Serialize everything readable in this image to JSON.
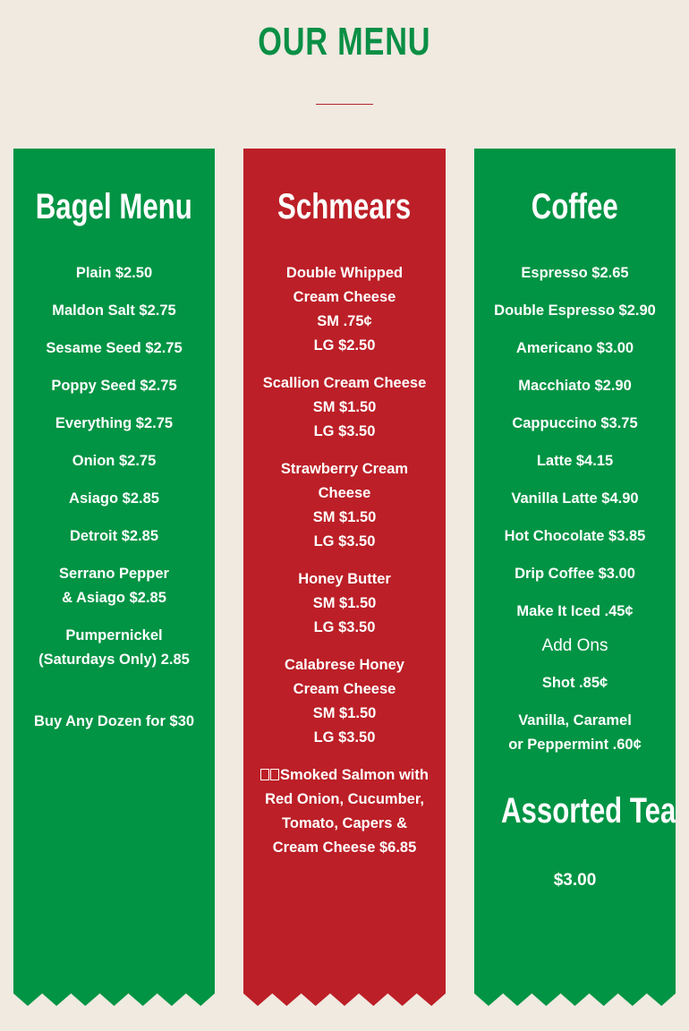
{
  "title": "OUR MENU",
  "colors": {
    "background": "#f0eae1",
    "green": "#009444",
    "red": "#bc1f27",
    "title": "#0a8f45"
  },
  "bagels": {
    "heading": "Bagel Menu",
    "items": [
      [
        "Plain $2.50"
      ],
      [
        "Maldon Salt $2.75"
      ],
      [
        "Sesame Seed $2.75"
      ],
      [
        "Poppy Seed $2.75"
      ],
      [
        "Everything $2.75"
      ],
      [
        "Onion $2.75"
      ],
      [
        "Asiago $2.85"
      ],
      [
        "Detroit $2.85"
      ],
      [
        "Serrano Pepper",
        "& Asiago $2.85"
      ],
      [
        "Pumpernickel",
        "(Saturdays Only) 2.85"
      ]
    ],
    "footer": "Buy Any Dozen for $30"
  },
  "schmears": {
    "heading": "Schmears",
    "items": [
      [
        "Double Whipped",
        "Cream Cheese",
        "SM .75¢",
        "LG $2.50"
      ],
      [
        "Scallion Cream Cheese",
        "SM $1.50",
        "LG $3.50"
      ],
      [
        "Strawberry Cream",
        "Cheese",
        "SM $1.50",
        "LG $3.50"
      ],
      [
        "Honey Butter",
        "SM $1.50",
        "LG $3.50"
      ],
      [
        "Calabrese Honey",
        "Cream Cheese",
        "SM $1.50",
        "LG $3.50"
      ],
      [
        "Smoked Salmon with",
        "Red Onion, Cucumber,",
        "Tomato, Capers &",
        "Cream Cheese $6.85"
      ]
    ]
  },
  "coffee": {
    "heading": "Coffee",
    "items": [
      [
        "Espresso $2.65"
      ],
      [
        "Double Espresso $2.90"
      ],
      [
        "Americano $3.00"
      ],
      [
        "Macchiato $2.90"
      ],
      [
        "Cappuccino $3.75"
      ],
      [
        "Latte $4.15"
      ],
      [
        "Vanilla Latte $4.90"
      ],
      [
        "Hot Chocolate $3.85"
      ],
      [
        "Drip Coffee $3.00"
      ],
      [
        "Make It Iced .45¢"
      ]
    ],
    "addons_label": "Add Ons",
    "addons": [
      [
        "Shot .85¢"
      ],
      [
        "Vanilla, Caramel",
        "or Peppermint .60¢"
      ]
    ],
    "teas_heading": "Assorted Teas",
    "teas_price": "$3.00"
  }
}
